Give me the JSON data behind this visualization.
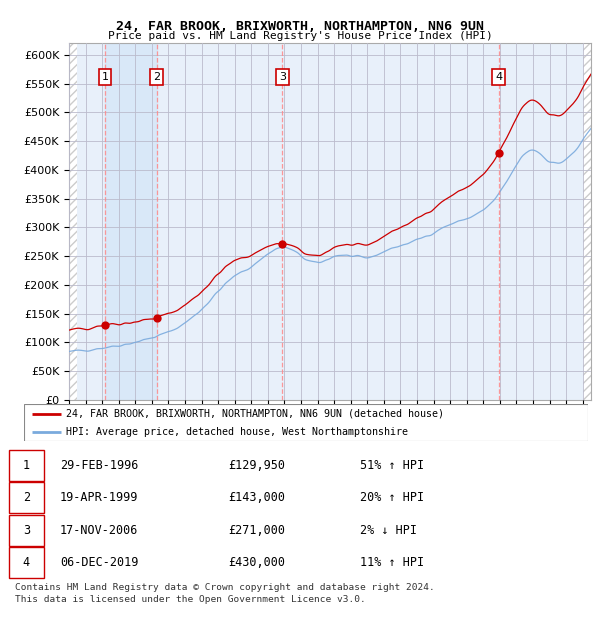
{
  "title1": "24, FAR BROOK, BRIXWORTH, NORTHAMPTON, NN6 9UN",
  "title2": "Price paid vs. HM Land Registry's House Price Index (HPI)",
  "ylim": [
    0,
    620000
  ],
  "yticks": [
    0,
    50000,
    100000,
    150000,
    200000,
    250000,
    300000,
    350000,
    400000,
    450000,
    500000,
    550000,
    600000
  ],
  "xlim": [
    1994.0,
    2025.5
  ],
  "sale_color": "#cc0000",
  "hpi_color": "#7aaadd",
  "legend_label_sale": "24, FAR BROOK, BRIXWORTH, NORTHAMPTON, NN6 9UN (detached house)",
  "legend_label_hpi": "HPI: Average price, detached house, West Northamptonshire",
  "sales": [
    {
      "num": 1,
      "year": 1996.17,
      "price": 129950,
      "label": "1"
    },
    {
      "num": 2,
      "year": 1999.3,
      "price": 143000,
      "label": "2"
    },
    {
      "num": 3,
      "year": 2006.88,
      "price": 271000,
      "label": "3"
    },
    {
      "num": 4,
      "year": 2019.92,
      "price": 430000,
      "label": "4"
    }
  ],
  "table_rows": [
    {
      "num": "1",
      "date": "29-FEB-1996",
      "price": "£129,950",
      "change": "51% ↑ HPI"
    },
    {
      "num": "2",
      "date": "19-APR-1999",
      "price": "£143,000",
      "change": "20% ↑ HPI"
    },
    {
      "num": "3",
      "date": "17-NOV-2006",
      "price": "£271,000",
      "change": "2% ↓ HPI"
    },
    {
      "num": "4",
      "date": "06-DEC-2019",
      "price": "£430,000",
      "change": "11% ↑ HPI"
    }
  ],
  "footnote1": "Contains HM Land Registry data © Crown copyright and database right 2024.",
  "footnote2": "This data is licensed under the Open Government Licence v3.0."
}
